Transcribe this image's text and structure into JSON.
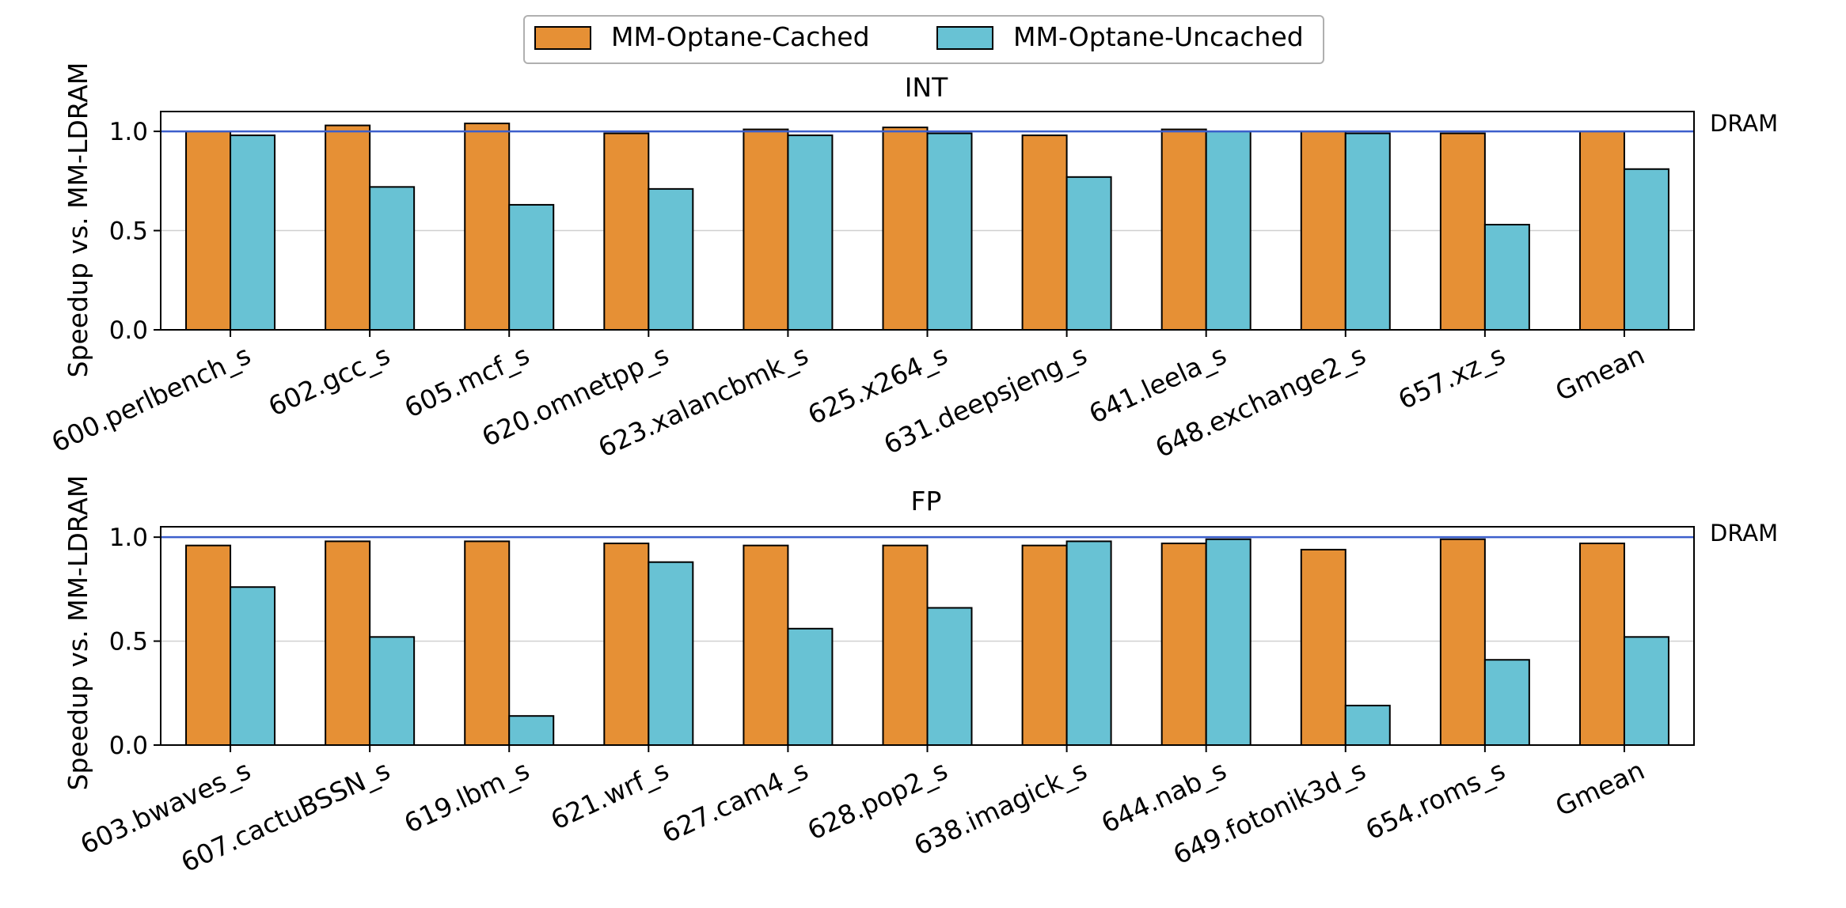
{
  "legend": {
    "items": [
      {
        "label": "MM-Optane-Cached",
        "color": "#E69035"
      },
      {
        "label": "MM-Optane-Uncached",
        "color": "#68C2D4"
      }
    ],
    "placement": "top-center"
  },
  "reference_line": {
    "label": "DRAM",
    "value": 1.0,
    "color": "#3C5FCC"
  },
  "chart_data": [
    {
      "type": "bar",
      "title": "INT",
      "ylabel": "Speedup vs. MM-LDRAM",
      "xlabel": "",
      "ylim": [
        0,
        1.1
      ],
      "yticks": [
        "0.0",
        "0.5",
        "1.0"
      ],
      "grid": "horizontal",
      "categories": [
        "600.perlbench_s",
        "602.gcc_s",
        "605.mcf_s",
        "620.omnetpp_s",
        "623.xalancbmk_s",
        "625.x264_s",
        "631.deepsjeng_s",
        "641.leela_s",
        "648.exchange2_s",
        "657.xz_s",
        "Gmean"
      ],
      "series": [
        {
          "name": "MM-Optane-Cached",
          "values": [
            1.0,
            1.03,
            1.04,
            0.99,
            1.01,
            1.02,
            0.98,
            1.01,
            1.0,
            0.99,
            1.0
          ]
        },
        {
          "name": "MM-Optane-Uncached",
          "values": [
            0.98,
            0.72,
            0.63,
            0.71,
            0.98,
            0.99,
            0.77,
            1.0,
            0.99,
            0.53,
            0.81
          ]
        }
      ]
    },
    {
      "type": "bar",
      "title": "FP",
      "ylabel": "Speedup vs. MM-LDRAM",
      "xlabel": "",
      "ylim": [
        0,
        1.05
      ],
      "yticks": [
        "0.0",
        "0.5",
        "1.0"
      ],
      "grid": "horizontal",
      "categories": [
        "603.bwaves_s",
        "607.cactuBSSN_s",
        "619.lbm_s",
        "621.wrf_s",
        "627.cam4_s",
        "628.pop2_s",
        "638.imagick_s",
        "644.nab_s",
        "649.fotonik3d_s",
        "654.roms_s",
        "Gmean"
      ],
      "series": [
        {
          "name": "MM-Optane-Cached",
          "values": [
            0.96,
            0.98,
            0.98,
            0.97,
            0.96,
            0.96,
            0.96,
            0.97,
            0.94,
            0.99,
            0.97
          ]
        },
        {
          "name": "MM-Optane-Uncached",
          "values": [
            0.76,
            0.52,
            0.14,
            0.88,
            0.56,
            0.66,
            0.98,
            0.99,
            0.19,
            0.41,
            0.52
          ]
        }
      ]
    }
  ]
}
